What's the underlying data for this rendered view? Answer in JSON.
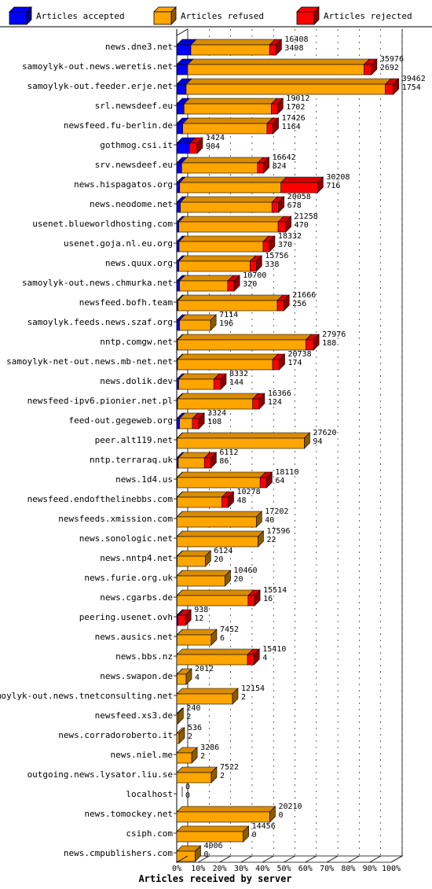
{
  "chart_data": {
    "type": "bar",
    "subtype": "stacked-horizontal-percent",
    "title": "",
    "xlabel": "Articles received by server",
    "ylabel": "",
    "xlim": [
      0,
      100
    ],
    "x_tick_labels": [
      "0%",
      "10%",
      "20%",
      "30%",
      "40%",
      "50%",
      "60%",
      "70%",
      "80%",
      "90%",
      "100%"
    ],
    "grid": true,
    "legend_position": "top",
    "legend": [
      {
        "name": "Articles accepted",
        "color": "#0000ff"
      },
      {
        "name": "Articles refused",
        "color": "#ffa500"
      },
      {
        "name": "Articles rejected",
        "color": "#ff0000"
      }
    ],
    "categories": [
      "news.dne3.net",
      "samoylyk-out.news.weretis.net",
      "samoylyk-out.feeder.erje.net",
      "srl.newsdeef.eu",
      "newsfeed.fu-berlin.de",
      "gothmog.csi.it",
      "srv.newsdeef.eu",
      "news.hispagatos.org",
      "news.neodome.net",
      "usenet.blueworldhosting.com",
      "usenet.goja.nl.eu.org",
      "news.quux.org",
      "samoylyk-out.news.chmurka.net",
      "newsfeed.bofh.team",
      "samoylyk.feeds.news.szaf.org",
      "nntp.comgw.net",
      "samoylyk-net-out.news.mb-net.net",
      "news.dolik.dev",
      "newsfeed-ipv6.pionier.net.pl",
      "feed-out.gegeweb.org",
      "peer.alt119.net",
      "nntp.terraraq.uk",
      "news.1d4.us",
      "newsfeed.endofthelinebbs.com",
      "newsfeeds.xmission.com",
      "news.sonologic.net",
      "news.nntp4.net",
      "news.furie.org.uk",
      "news.cgarbs.de",
      "peering.usenet.ovh",
      "news.ausics.net",
      "news.bbs.nz",
      "news.swapon.de",
      "samoylyk-out.news.tnetconsulting.net",
      "newsfeed.xs3.de",
      "news.corradoroberto.it",
      "news.niel.me",
      "outgoing.news.lysator.liu.se",
      "localhost",
      "news.tomockey.net",
      "csiph.com",
      "news.cmpublishers.com"
    ],
    "series": [
      {
        "name": "Articles accepted",
        "values": [
          6.6,
          5.1,
          4.4,
          3.4,
          2.8,
          6.0,
          2.3,
          1.4,
          1.7,
          1.0,
          1.1,
          1.0,
          1.3,
          0.6,
          1.3,
          0.4,
          0.4,
          0.9,
          0.4,
          1.3,
          0.2,
          0.7,
          0.2,
          0.2,
          0.1,
          0.1,
          0.2,
          0.1,
          0.1,
          0.6,
          0.1,
          0.0,
          0.1,
          0.0,
          0.0,
          0.0,
          0.0,
          0.0,
          0.0,
          0.0,
          0.0,
          0.0
        ]
      },
      {
        "name": "Articles refused",
        "values": [
          36.7,
          82.2,
          92.9,
          40.7,
          39.3,
          0,
          35.4,
          47.2,
          42.7,
          46.3,
          39.2,
          33.2,
          22.5,
          46.3,
          14.5,
          59.8,
          44.3,
          16.4,
          35.0,
          6.0,
          59.3,
          12.2,
          38.7,
          20.8,
          37.0,
          37.8,
          13.1,
          22.4,
          33.2,
          0,
          16.0,
          33.0,
          4.3,
          26.0,
          0.5,
          1.1,
          7.0,
          16.1,
          0,
          43.4,
          31.0,
          8.6
        ]
      },
      {
        "name": "Articles rejected",
        "values": [
          3.0,
          3.5,
          3.7,
          2.9,
          2.8,
          3.5,
          2.8,
          17.1,
          3.1,
          3.5,
          2.9,
          2.9,
          3.0,
          3.0,
          0,
          3.6,
          3.1,
          3.2,
          3.0,
          3.0,
          0,
          3.0,
          3.0,
          3.0,
          0,
          0,
          0,
          0,
          3.0,
          3.5,
          0,
          3.0,
          0,
          0,
          0,
          0,
          0,
          0,
          0,
          0,
          0,
          0
        ]
      },
      {
        "name": "Articles accepted (side)",
        "values": [
          0,
          0,
          0,
          0,
          0,
          0,
          0,
          0,
          0,
          0,
          0,
          0,
          0,
          0,
          0,
          0,
          0,
          0,
          0,
          0,
          0,
          0,
          0,
          0,
          0,
          0,
          0,
          0,
          0,
          0,
          0,
          0,
          0,
          0,
          0,
          0,
          0,
          0,
          0,
          0,
          0,
          0
        ]
      }
    ],
    "labels_top": [
      "16408",
      "35976",
      "39462",
      "19012",
      "17426",
      "1424",
      "16642",
      "30208",
      "20058",
      "21258",
      "18332",
      "15756",
      "10700",
      "21666",
      "7114",
      "27976",
      "20738",
      "8332",
      "16366",
      "3324",
      "27620",
      "6112",
      "18110",
      "10278",
      "17202",
      "17596",
      "6124",
      "10460",
      "15514",
      "938",
      "7452",
      "15410",
      "2012",
      "12154",
      "240",
      "536",
      "3286",
      "7522",
      "0",
      "20210",
      "14456",
      "4006"
    ],
    "labels_bottom": [
      "3498",
      "2692",
      "1754",
      "1702",
      "1164",
      "904",
      "824",
      "716",
      "678",
      "470",
      "370",
      "338",
      "320",
      "256",
      "196",
      "188",
      "174",
      "144",
      "124",
      "108",
      "94",
      "86",
      "64",
      "48",
      "40",
      "22",
      "20",
      "20",
      "16",
      "12",
      "6",
      "4",
      "4",
      "2",
      "2",
      "2",
      "2",
      "2",
      "0",
      "0",
      "0",
      "0"
    ]
  }
}
